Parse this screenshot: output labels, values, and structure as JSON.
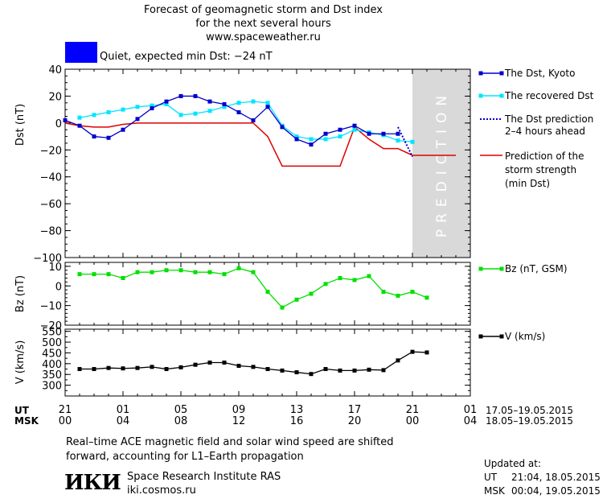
{
  "header": {
    "title_line1": "Forecast of geomagnetic storm and Dst index",
    "title_line2": "for the next several hours",
    "site": "www.spaceweather.ru"
  },
  "status": {
    "text": "Quiet, expected min Dst: −24 nT",
    "color": "#0000ff"
  },
  "colors": {
    "dst_kyoto": "#0000cc",
    "recovered": "#00e5ff",
    "prediction_line": "#0000cc",
    "storm_strength": "#dd0000",
    "bz": "#00e000",
    "speed": "#000000",
    "prediction_band": "#d9d9d9"
  },
  "legend": {
    "dst_kyoto": "The Dst, Kyoto",
    "recovered": "The recovered Dst",
    "prediction_l1": "The Dst prediction",
    "prediction_l2": "2–4 hours ahead",
    "strength_l1": "Prediction of the",
    "strength_l2": "storm strength",
    "strength_l3": "(min Dst)",
    "bz": "Bz (nT, GSM)",
    "v": "V (km/s)"
  },
  "prediction_label": "PREDICTION",
  "axes": {
    "ut_label": "UT",
    "msk_label": "MSK",
    "ut_ticks": [
      "21",
      "01",
      "05",
      "09",
      "13",
      "17",
      "21",
      "01"
    ],
    "msk_ticks": [
      "00",
      "04",
      "08",
      "12",
      "16",
      "20",
      "00",
      "04"
    ],
    "ut_range": "17.05–19.05.2015",
    "msk_range": "18.05–19.05.2015"
  },
  "chart_data": [
    {
      "type": "line",
      "ylabel": "Dst (nT)",
      "ylim": [
        -100,
        40
      ],
      "yticks": [
        "40",
        "20",
        "0",
        "−20",
        "−40",
        "−60",
        "−80",
        "−100"
      ],
      "x_hours": [
        0,
        1,
        2,
        3,
        4,
        5,
        6,
        7,
        8,
        9,
        10,
        11,
        12,
        13,
        14,
        15,
        16,
        17,
        18,
        19,
        20,
        21,
        22,
        23
      ],
      "series": [
        {
          "name": "The Dst, Kyoto",
          "x": [
            0,
            1,
            2,
            3,
            4,
            5,
            6,
            7,
            8,
            9,
            10,
            11,
            12,
            13,
            14,
            15,
            16,
            17,
            18,
            19,
            20,
            21,
            22,
            23
          ],
          "values": [
            2,
            -2,
            -10,
            -11,
            -5,
            3,
            11,
            16,
            20,
            20,
            16,
            14,
            8,
            2,
            12,
            -3,
            -12,
            -16,
            -8,
            -5,
            -2,
            -8,
            -8,
            -8
          ]
        },
        {
          "name": "The recovered Dst",
          "x": [
            1,
            2,
            3,
            4,
            5,
            6,
            7,
            8,
            9,
            10,
            11,
            12,
            13,
            14,
            15,
            16,
            17,
            18,
            19,
            20,
            21,
            22,
            23,
            24
          ],
          "values": [
            4,
            6,
            8,
            10,
            12,
            13,
            14,
            6,
            7,
            9,
            12,
            15,
            16,
            15,
            -2,
            -10,
            -12,
            -12,
            -10,
            -5,
            -7,
            -9,
            -13,
            -14
          ]
        },
        {
          "name": "The Dst prediction",
          "x": [
            23,
            24
          ],
          "values": [
            -3,
            -25
          ]
        },
        {
          "name": "Prediction of the storm strength (min Dst)",
          "x": [
            0,
            1,
            2,
            3,
            4,
            5,
            6,
            7,
            8,
            9,
            10,
            11,
            12,
            13,
            14,
            15,
            16,
            17,
            18,
            19,
            20,
            21,
            22,
            23,
            24,
            25,
            26,
            27
          ],
          "values": [
            0,
            -2,
            -3,
            -3,
            -1,
            0,
            0,
            0,
            0,
            0,
            0,
            0,
            0,
            0,
            -10,
            -32,
            -32,
            -32,
            -32,
            -32,
            -3,
            -12,
            -19,
            -19,
            -24,
            -24,
            -24,
            -24
          ]
        }
      ]
    },
    {
      "type": "line",
      "ylabel": "Bz (nT)",
      "ylim": [
        -20,
        12
      ],
      "yticks": [
        "10",
        "0",
        "−10",
        "−20"
      ],
      "series": [
        {
          "name": "Bz (nT, GSM)",
          "x": [
            1,
            2,
            3,
            4,
            5,
            6,
            7,
            8,
            9,
            10,
            11,
            12,
            13,
            14,
            15,
            16,
            17,
            18,
            19,
            20,
            21,
            22,
            23,
            24,
            25
          ],
          "values": [
            6,
            6,
            6,
            4,
            7,
            7,
            8,
            8,
            7,
            7,
            6,
            9,
            7,
            -3,
            -11,
            -7,
            -4,
            1,
            4,
            3,
            5,
            -3,
            -5,
            -3,
            -6
          ]
        }
      ]
    },
    {
      "type": "line",
      "ylabel": "V (km/s)",
      "ylim": [
        250,
        560
      ],
      "yticks": [
        "550",
        "500",
        "450",
        "400",
        "350",
        "300"
      ],
      "series": [
        {
          "name": "V (km/s)",
          "x": [
            1,
            2,
            3,
            4,
            5,
            6,
            7,
            8,
            9,
            10,
            11,
            12,
            13,
            14,
            15,
            16,
            17,
            18,
            19,
            20,
            21,
            22,
            23,
            24,
            25
          ],
          "values": [
            375,
            375,
            380,
            378,
            380,
            385,
            375,
            383,
            395,
            405,
            405,
            390,
            385,
            375,
            368,
            360,
            352,
            375,
            368,
            368,
            372,
            370,
            415,
            455,
            452
          ]
        }
      ]
    }
  ],
  "footer": {
    "note_l1": "Real–time ACE magnetic field and solar wind speed are shifted",
    "note_l2": "forward, accounting for L1–Earth propagation",
    "logo": "ИКИ",
    "org_name": "Space Research Institute RAS",
    "org_site": "iki.cosmos.ru",
    "updated_label": "Updated at:",
    "updated_ut_label": "UT",
    "updated_ut": "21:04, 18.05.2015",
    "updated_msk_label": "MSK",
    "updated_msk": "00:04, 19.05.2015"
  }
}
